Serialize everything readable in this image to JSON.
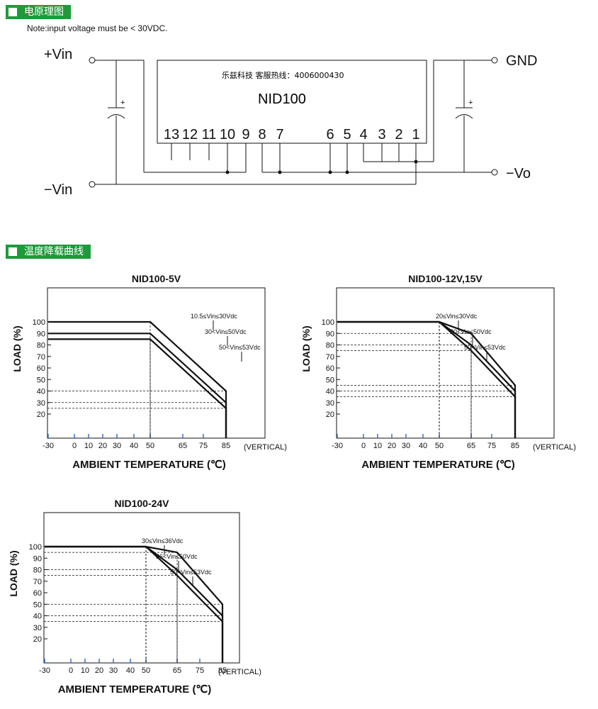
{
  "sections": {
    "schematic_header": "电原理图",
    "derating_header": "温度降载曲线"
  },
  "note": "Note:input voltage must be < 30VDC.",
  "schematic": {
    "plus_vin": "+Vin",
    "minus_vin": "−Vin",
    "gnd": "GND",
    "minus_vo": "−Vo",
    "hotline": "乐兹科技 客服热线：4006000430",
    "model": "NID100",
    "cap_plus": "+",
    "pins": [
      "13",
      "12",
      "11",
      "10",
      "9",
      "8",
      "7",
      "6",
      "5",
      "4",
      "3",
      "2",
      "1"
    ]
  },
  "chart_data": [
    {
      "type": "line",
      "title": "NID100-5V",
      "xlabel": "AMBIENT TEMPERATURE (℃)",
      "ylabel": "LOAD (%)",
      "x_ticks": [
        "-30",
        "0",
        "10",
        "20",
        "30",
        "40",
        "50",
        "65",
        "75",
        "85"
      ],
      "y_ticks": [
        "20",
        "30",
        "40",
        "50",
        "60",
        "70",
        "80",
        "90",
        "100"
      ],
      "vertical_note": "(VERTICAL)",
      "series": [
        {
          "name": "10.5≤Vin≤30Vdc",
          "x": [
            -30,
            50,
            85,
            85
          ],
          "y": [
            100,
            100,
            40,
            0
          ]
        },
        {
          "name": "30<Vin≤50Vdc",
          "x": [
            -30,
            50,
            85,
            85
          ],
          "y": [
            90,
            90,
            30,
            0
          ]
        },
        {
          "name": "50<Vin≤53Vdc",
          "x": [
            -30,
            50,
            85,
            85
          ],
          "y": [
            85,
            85,
            25,
            0
          ]
        }
      ]
    },
    {
      "type": "line",
      "title": "NID100-12V,15V",
      "xlabel": "AMBIENT TEMPERATURE (℃)",
      "ylabel": "LOAD (%)",
      "x_ticks": [
        "-30",
        "0",
        "10",
        "20",
        "30",
        "40",
        "50",
        "65",
        "75",
        "85"
      ],
      "y_ticks": [
        "20",
        "30",
        "40",
        "50",
        "60",
        "70",
        "80",
        "90",
        "100"
      ],
      "vertical_note": "(VERTICAL)",
      "series": [
        {
          "name": "20≤Vin≤30Vdc",
          "x": [
            -30,
            50,
            65,
            85,
            85
          ],
          "y": [
            100,
            100,
            90,
            45,
            0
          ]
        },
        {
          "name": "30<Vin≤50Vdc",
          "x": [
            -30,
            50,
            65,
            85,
            85
          ],
          "y": [
            100,
            100,
            80,
            40,
            0
          ]
        },
        {
          "name": "50<Vin≤53Vdc",
          "x": [
            -30,
            50,
            65,
            85,
            85
          ],
          "y": [
            100,
            100,
            75,
            35,
            0
          ]
        }
      ]
    },
    {
      "type": "line",
      "title": "NID100-24V",
      "xlabel": "AMBIENT TEMPERATURE (℃)",
      "ylabel": "LOAD (%)",
      "x_ticks": [
        "-30",
        "0",
        "10",
        "20",
        "30",
        "40",
        "50",
        "65",
        "75",
        "85"
      ],
      "y_ticks": [
        "20",
        "30",
        "40",
        "50",
        "60",
        "70",
        "80",
        "90",
        "100"
      ],
      "vertical_note": "(VERTICAL)",
      "series": [
        {
          "name": "30≤Vin≤36Vdc",
          "x": [
            -30,
            50,
            65,
            85,
            85
          ],
          "y": [
            100,
            100,
            95,
            50,
            0
          ]
        },
        {
          "name": "36<Vin≤50Vdc",
          "x": [
            -30,
            50,
            65,
            85,
            85
          ],
          "y": [
            100,
            100,
            80,
            40,
            0
          ]
        },
        {
          "name": "50<Vin≤53Vdc",
          "x": [
            -30,
            50,
            65,
            85,
            85
          ],
          "y": [
            100,
            100,
            75,
            35,
            0
          ]
        }
      ]
    }
  ]
}
